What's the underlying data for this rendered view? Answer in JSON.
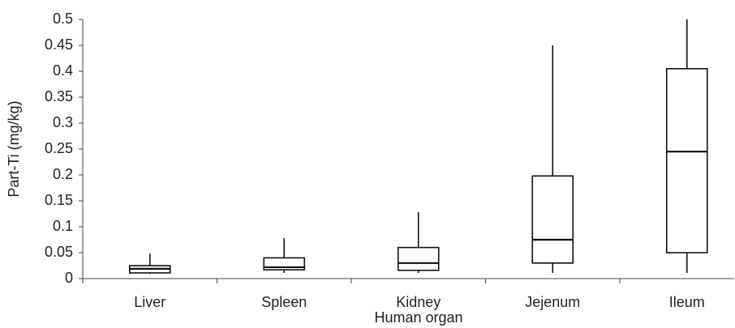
{
  "chart_data": {
    "type": "box",
    "ylabel": "Part-Ti (mg/kg)",
    "xlabel": "Human organ",
    "categories": [
      "Liver",
      "Spleen",
      "Kidney",
      "Jejenum",
      "Ileum"
    ],
    "boxes": [
      {
        "min": 0.009,
        "q1": 0.011,
        "median": 0.019,
        "q3": 0.025,
        "max": 0.048
      },
      {
        "min": 0.011,
        "q1": 0.017,
        "median": 0.022,
        "q3": 0.04,
        "max": 0.078
      },
      {
        "min": 0.011,
        "q1": 0.016,
        "median": 0.03,
        "q3": 0.06,
        "max": 0.128
      },
      {
        "min": 0.011,
        "q1": 0.03,
        "median": 0.075,
        "q3": 0.198,
        "max": 0.45
      },
      {
        "min": 0.011,
        "q1": 0.05,
        "median": 0.245,
        "q3": 0.405,
        "max": 0.5
      }
    ],
    "ylim": [
      0,
      0.5
    ],
    "yticks": [
      0,
      0.05,
      0.1,
      0.15,
      0.2,
      0.25,
      0.3,
      0.35,
      0.4,
      0.45,
      0.5
    ],
    "grid": false
  }
}
